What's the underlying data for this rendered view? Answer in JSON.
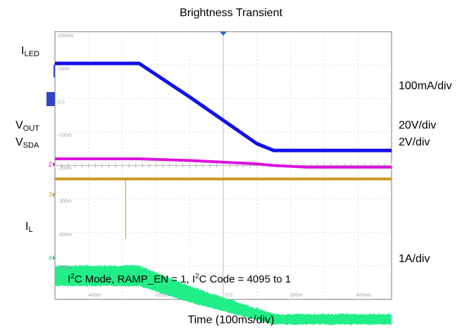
{
  "chart_data": {
    "type": "line",
    "title": "Brightness Transient",
    "xlabel": "Time (100ms/div)",
    "annotation": {
      "pre": "I",
      "sup1": "2",
      "mid": "C Mode, RAMP_EN = 1, I",
      "sup2": "2",
      "post": "C Code = 4095 to 1"
    },
    "scope_scale_labels": [
      "200mA",
      "100m",
      "0.0",
      "-100m",
      "-200m",
      "-300m",
      "-400m",
      "-500m"
    ],
    "scope_time_labels": [
      "-400m",
      "-200m",
      "0.0",
      "200m",
      "400ms"
    ],
    "grid": true,
    "divisions": {
      "x": 10,
      "y": 8
    },
    "x_per_div_ms": 100,
    "x": [
      -500,
      -350,
      -250,
      -100,
      0,
      100,
      150,
      250,
      500
    ],
    "series": [
      {
        "name": "I",
        "label": {
          "base": "I",
          "sub": "LED"
        },
        "scale": "100mA/div",
        "color": "#1010ee",
        "y_div": [
          3.05,
          3.05,
          3.05,
          2.05,
          1.35,
          0.65,
          0.45,
          0.45,
          0.45
        ]
      },
      {
        "name": "V",
        "label": {
          "base": "V",
          "sub": "OUT"
        },
        "scale": "20V/div",
        "color": "#dd11dd",
        "y_div": [
          0.2,
          0.2,
          0.2,
          0.15,
          0.1,
          0.05,
          0.0,
          -0.05,
          -0.05
        ]
      },
      {
        "name": "V",
        "label": {
          "base": "V",
          "sub": "SDA"
        },
        "scale": "2V/div",
        "color": "#cc9922",
        "y_div": [
          -0.4,
          -0.4,
          -0.4,
          -0.4,
          -0.4,
          -0.4,
          -0.4,
          -0.4,
          -0.4
        ],
        "glitch": {
          "x": -290,
          "y_div": -2.2
        }
      },
      {
        "name": "I",
        "label": {
          "base": "I",
          "sub": "L"
        },
        "scale": "1A/div",
        "color": "#22ee88",
        "y_div": [
          -3.3,
          -3.3,
          -3.3,
          -3.85,
          -4.15,
          -4.45,
          -4.6,
          -4.6,
          -4.6
        ],
        "band_div": [
          0.28,
          0.28,
          0.28,
          0.22,
          0.18,
          0.15,
          0.13,
          0.13,
          0.13
        ]
      }
    ]
  }
}
